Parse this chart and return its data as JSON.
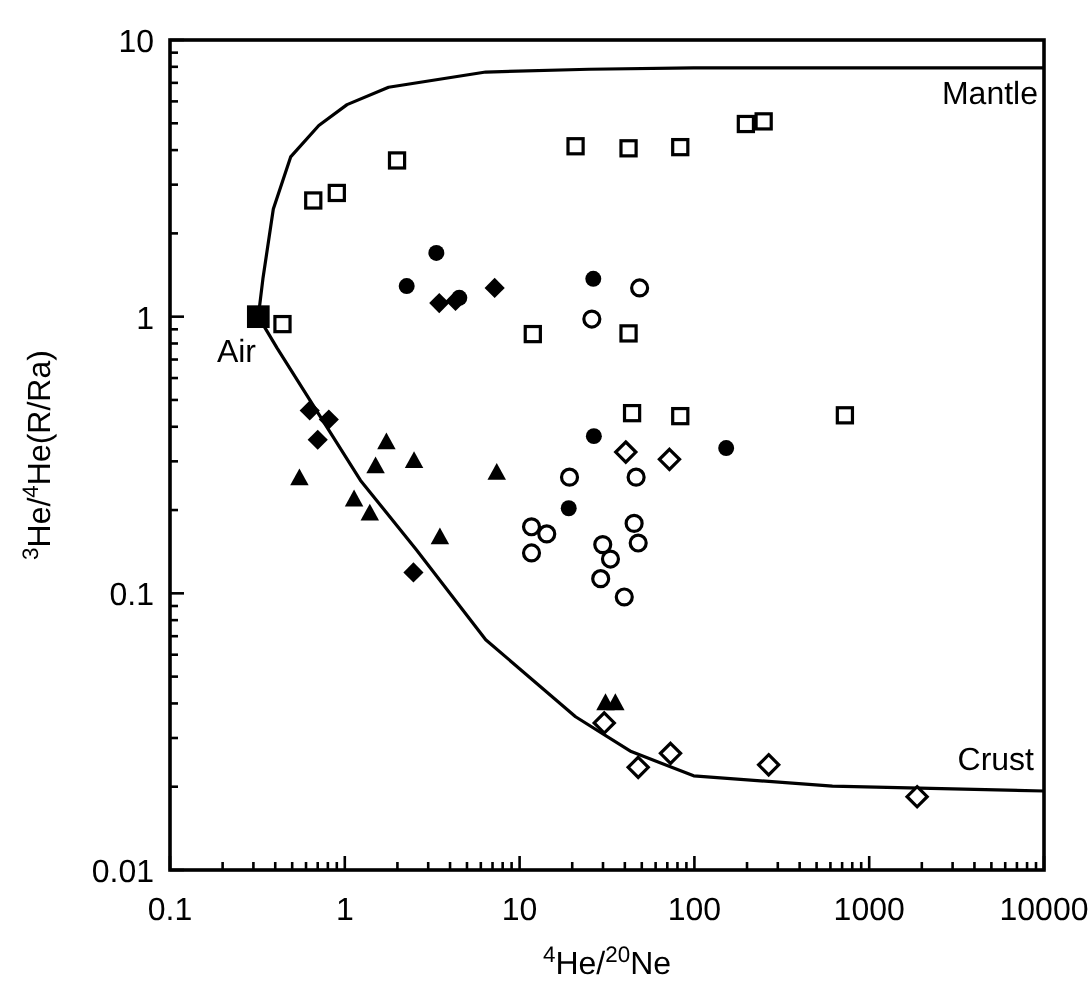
{
  "chart_data": {
    "type": "scatter",
    "xlabel": "$^{4}$He/$^{20}$Ne",
    "ylabel": "$^{3}$He/$^{4}$He(R/Ra)",
    "log": "xy",
    "grid": false,
    "xlim": [
      0.1,
      10000
    ],
    "ylim": [
      0.01,
      10
    ],
    "xticks": [
      0.1,
      {
        "value": 0.2,
        "label": null
      },
      {
        "value": 0.3,
        "label": null
      },
      {
        "value": 0.4,
        "label": null
      },
      {
        "value": 0.5,
        "label": null
      },
      {
        "value": 0.6,
        "label": null
      },
      {
        "value": 0.7,
        "label": null
      },
      {
        "value": 0.8,
        "label": null
      },
      {
        "value": 0.9,
        "label": null
      },
      1,
      {
        "value": 2,
        "label": null
      },
      {
        "value": 3,
        "label": null
      },
      {
        "value": 4,
        "label": null
      },
      {
        "value": 5,
        "label": null
      },
      {
        "value": 6,
        "label": null
      },
      {
        "value": 7,
        "label": null
      },
      {
        "value": 8,
        "label": null
      },
      {
        "value": 9,
        "label": null
      },
      10,
      {
        "value": 20,
        "label": null
      },
      {
        "value": 30,
        "label": null
      },
      {
        "value": 40,
        "label": null
      },
      {
        "value": 50,
        "label": null
      },
      {
        "value": 60,
        "label": null
      },
      {
        "value": 70,
        "label": null
      },
      {
        "value": 80,
        "label": null
      },
      {
        "value": 90,
        "label": null
      },
      100,
      {
        "value": 200,
        "label": null
      },
      {
        "value": 300,
        "label": null
      },
      {
        "value": 400,
        "label": null
      },
      {
        "value": 500,
        "label": null
      },
      {
        "value": 600,
        "label": null
      },
      {
        "value": 700,
        "label": null
      },
      {
        "value": 800,
        "label": null
      },
      {
        "value": 900,
        "label": null
      },
      1000,
      {
        "value": 2000,
        "label": null
      },
      {
        "value": 3000,
        "label": null
      },
      {
        "value": 4000,
        "label": null
      },
      {
        "value": 5000,
        "label": null
      },
      {
        "value": 6000,
        "label": null
      },
      {
        "value": 7000,
        "label": null
      },
      {
        "value": 8000,
        "label": null
      },
      {
        "value": 9000,
        "label": null
      },
      10000
    ],
    "yticks": [
      0.01,
      {
        "value": 0.02,
        "label": null
      },
      {
        "value": 0.03,
        "label": null
      },
      {
        "value": 0.04,
        "label": null
      },
      {
        "value": 0.05,
        "label": null
      },
      {
        "value": 0.06,
        "label": null
      },
      {
        "value": 0.07,
        "label": null
      },
      {
        "value": 0.08,
        "label": null
      },
      {
        "value": 0.09,
        "label": null
      },
      0.1,
      {
        "value": 0.2,
        "label": null
      },
      {
        "value": 0.3,
        "label": null
      },
      {
        "value": 0.4,
        "label": null
      },
      {
        "value": 0.5,
        "label": null
      },
      {
        "value": 0.6,
        "label": null
      },
      {
        "value": 0.7,
        "label": null
      },
      {
        "value": 0.8,
        "label": null
      },
      {
        "value": 0.9,
        "label": null
      },
      1,
      {
        "value": 2,
        "label": null
      },
      {
        "value": 3,
        "label": null
      },
      {
        "value": 4,
        "label": null
      },
      {
        "value": 5,
        "label": null
      },
      {
        "value": 6,
        "label": null
      },
      {
        "value": 7,
        "label": null
      },
      {
        "value": 8,
        "label": null
      },
      {
        "value": 9,
        "label": null
      },
      10
    ],
    "series": [
      {
        "type": "line",
        "color": "#000000",
        "marker": "none",
        "x": [
          0.32,
          0.34,
          0.39,
          0.49,
          0.71,
          1.03,
          1.78,
          6.4,
          25,
          99,
          10000
        ],
        "values": [
          1,
          1.37,
          2.45,
          3.78,
          4.91,
          5.84,
          6.75,
          7.66,
          7.84,
          7.93,
          7.93
        ]
      },
      {
        "type": "line",
        "color": "#000000",
        "marker": "none",
        "x": [
          0.32,
          0.41,
          1.23,
          2.56,
          6.4,
          20.9,
          43.5,
          99,
          616,
          10000
        ],
        "values": [
          1,
          0.77,
          0.256,
          0.144,
          0.068,
          0.0358,
          0.0268,
          0.0219,
          0.0201,
          0.0193
        ]
      },
      {
        "color": "#ffffff",
        "marker": "square",
        "x": [
          0.44,
          0.66,
          0.9,
          1.99,
          20.9,
          42,
          83,
          197,
          249,
          11.9,
          42,
          44,
          83,
          726
        ],
        "values": [
          0.94,
          2.63,
          2.8,
          3.67,
          4.13,
          4.06,
          4.1,
          4.97,
          5.08,
          0.865,
          0.87,
          0.448,
          0.437,
          0.44
        ]
      },
      {
        "color": "#000000",
        "marker": "diamond",
        "x": [
          3.47,
          4.3,
          7.2,
          0.63,
          0.81,
          0.7,
          2.47
        ],
        "values": [
          1.12,
          1.14,
          1.27,
          0.458,
          0.425,
          0.359,
          0.119
        ]
      },
      {
        "color": "#000000",
        "marker": "circle",
        "x": [
          3.34,
          2.26,
          4.52,
          26.4,
          26.6,
          152,
          19.1
        ],
        "values": [
          1.7,
          1.29,
          1.17,
          1.37,
          0.37,
          0.335,
          0.203
        ]
      },
      {
        "color": "#000000",
        "marker": "triangle",
        "x": [
          0.55,
          1.73,
          1.5,
          2.49,
          7.4,
          1.13,
          1.39,
          3.5,
          31,
          35.3
        ],
        "values": [
          0.26,
          0.351,
          0.287,
          0.3,
          0.272,
          0.218,
          0.194,
          0.159,
          0.04,
          0.04
        ]
      },
      {
        "color": "#ffffff",
        "marker": "circle",
        "x": [
          48.6,
          25.9,
          19.3,
          46.4,
          11.7,
          14.3,
          11.7,
          29.9,
          33.1,
          29.1,
          39.7,
          45.2,
          47.7
        ],
        "values": [
          1.27,
          0.98,
          0.263,
          0.263,
          0.174,
          0.164,
          0.14,
          0.15,
          0.133,
          0.113,
          0.097,
          0.179,
          0.152
        ]
      },
      {
        "color": "#ffffff",
        "marker": "diamond",
        "x": [
          40.5,
          72,
          30.5,
          47.7,
          73,
          266,
          1880
        ],
        "values": [
          0.324,
          0.305,
          0.034,
          0.0235,
          0.0264,
          0.024,
          0.0184
        ]
      },
      {
        "color": "#000000",
        "marker": "square",
        "x": [
          0.32
        ],
        "values": [
          1
        ]
      }
    ],
    "annotations": [
      "Mantle",
      "Crust",
      "Air"
    ]
  }
}
